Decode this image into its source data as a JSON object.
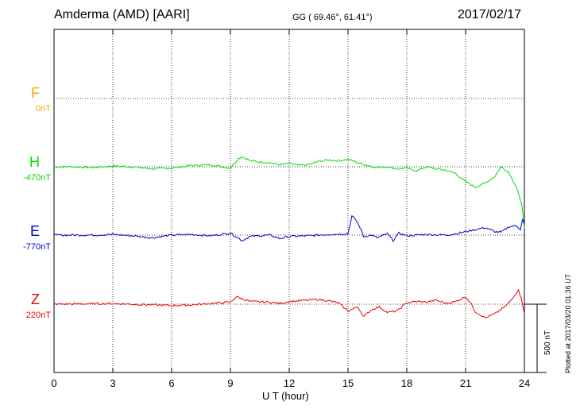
{
  "header": {
    "station": "Amderma (AMD)  [AARI]",
    "coords": "GG ( 69.46°,  61.41°)",
    "date": "2017/02/17"
  },
  "plotted_note": "Plotted at 2017/03/20 01:36 UT",
  "scale_label": "500 nT",
  "colors": {
    "F": "#ffa500",
    "H": "#00dd00",
    "E": "#0000cc",
    "Z": "#ee0000"
  },
  "chart_data": {
    "type": "line",
    "xlabel": "U T (hour)",
    "xlim": [
      0,
      24
    ],
    "xticks": [
      0,
      3,
      6,
      9,
      12,
      15,
      18,
      21,
      24
    ],
    "scale_bar_nT": 500,
    "grid": true,
    "series": [
      {
        "name": "F",
        "baseline_label": "0nT",
        "points": []
      },
      {
        "name": "H",
        "baseline_label": "-470nT",
        "points": [
          [
            0,
            0
          ],
          [
            1,
            0
          ],
          [
            2,
            -5
          ],
          [
            3,
            5
          ],
          [
            4,
            0
          ],
          [
            5,
            -15
          ],
          [
            6,
            -10
          ],
          [
            7,
            10
          ],
          [
            8,
            15
          ],
          [
            9,
            -10
          ],
          [
            9.4,
            60
          ],
          [
            9.6,
            75
          ],
          [
            10,
            45
          ],
          [
            10.5,
            35
          ],
          [
            11,
            30
          ],
          [
            11.5,
            15
          ],
          [
            12,
            25
          ],
          [
            12.5,
            10
          ],
          [
            13,
            15
          ],
          [
            13.5,
            40
          ],
          [
            14,
            50
          ],
          [
            14.5,
            45
          ],
          [
            15,
            55
          ],
          [
            15.5,
            30
          ],
          [
            16,
            10
          ],
          [
            16.5,
            -5
          ],
          [
            17,
            0
          ],
          [
            17.5,
            -15
          ],
          [
            18,
            -10
          ],
          [
            18.5,
            -30
          ],
          [
            19,
            0
          ],
          [
            19.5,
            -15
          ],
          [
            20,
            -25
          ],
          [
            20.5,
            -50
          ],
          [
            21,
            -110
          ],
          [
            21.5,
            -150
          ],
          [
            22,
            -120
          ],
          [
            22.5,
            -70
          ],
          [
            22.8,
            0
          ],
          [
            23.2,
            -40
          ],
          [
            23.6,
            -150
          ],
          [
            23.9,
            -300
          ],
          [
            24,
            -450
          ]
        ]
      },
      {
        "name": "E",
        "baseline_label": "-770nT",
        "points": [
          [
            0,
            0
          ],
          [
            2,
            0
          ],
          [
            3,
            5
          ],
          [
            4,
            -5
          ],
          [
            5,
            -20
          ],
          [
            6,
            0
          ],
          [
            7,
            5
          ],
          [
            8,
            -5
          ],
          [
            9,
            15
          ],
          [
            9.6,
            -40
          ],
          [
            10,
            -10
          ],
          [
            11,
            0
          ],
          [
            11.5,
            -25
          ],
          [
            12,
            -10
          ],
          [
            13,
            -5
          ],
          [
            14,
            5
          ],
          [
            15,
            10
          ],
          [
            15.2,
            140
          ],
          [
            15.4,
            110
          ],
          [
            15.6,
            60
          ],
          [
            15.8,
            -10
          ],
          [
            16.2,
            0
          ],
          [
            16.5,
            -20
          ],
          [
            17,
            10
          ],
          [
            17.3,
            -40
          ],
          [
            17.6,
            15
          ],
          [
            18,
            -5
          ],
          [
            19,
            5
          ],
          [
            20,
            0
          ],
          [
            20.5,
            10
          ],
          [
            21,
            25
          ],
          [
            21.5,
            40
          ],
          [
            22,
            55
          ],
          [
            22.5,
            25
          ],
          [
            22.8,
            20
          ],
          [
            23.2,
            60
          ],
          [
            23.6,
            70
          ],
          [
            23.8,
            40
          ],
          [
            23.9,
            110
          ],
          [
            24,
            80
          ]
        ]
      },
      {
        "name": "Z",
        "baseline_label": "220nT",
        "points": [
          [
            0,
            0
          ],
          [
            3,
            5
          ],
          [
            6,
            -10
          ],
          [
            7,
            -5
          ],
          [
            8,
            5
          ],
          [
            9,
            15
          ],
          [
            9.3,
            55
          ],
          [
            10,
            20
          ],
          [
            11,
            15
          ],
          [
            11.5,
            5
          ],
          [
            12,
            20
          ],
          [
            13,
            30
          ],
          [
            13.5,
            35
          ],
          [
            14,
            25
          ],
          [
            14.5,
            10
          ],
          [
            15,
            -50
          ],
          [
            15.5,
            -20
          ],
          [
            15.8,
            -90
          ],
          [
            16.2,
            -40
          ],
          [
            16.6,
            -20
          ],
          [
            17,
            -60
          ],
          [
            17.5,
            -50
          ],
          [
            18,
            10
          ],
          [
            18.5,
            20
          ],
          [
            19,
            15
          ],
          [
            19.5,
            30
          ],
          [
            20,
            5
          ],
          [
            20.5,
            20
          ],
          [
            21,
            55
          ],
          [
            21.3,
            0
          ],
          [
            21.5,
            -55
          ],
          [
            22,
            -100
          ],
          [
            22.5,
            -70
          ],
          [
            23,
            -20
          ],
          [
            23.4,
            40
          ],
          [
            23.7,
            110
          ],
          [
            23.9,
            10
          ],
          [
            24,
            -70
          ]
        ]
      }
    ]
  }
}
